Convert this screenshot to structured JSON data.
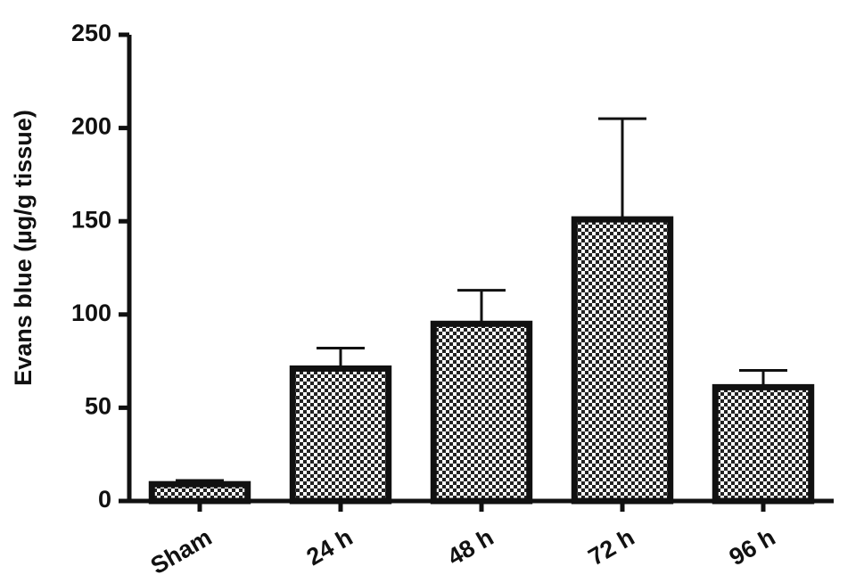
{
  "chart_data": {
    "type": "bar",
    "y_label": "Evans blue (µg/g tissue)",
    "categories": [
      "Sham",
      "24 h",
      "48 h",
      "72 h",
      "96 h"
    ],
    "values": [
      9,
      71,
      95,
      151,
      61
    ],
    "errors": [
      2,
      11,
      18,
      54,
      9
    ],
    "color": "#111111",
    "ylim": [
      0,
      250
    ],
    "yticks": [
      0,
      50,
      100,
      150,
      200,
      250
    ],
    "grid": false
  }
}
